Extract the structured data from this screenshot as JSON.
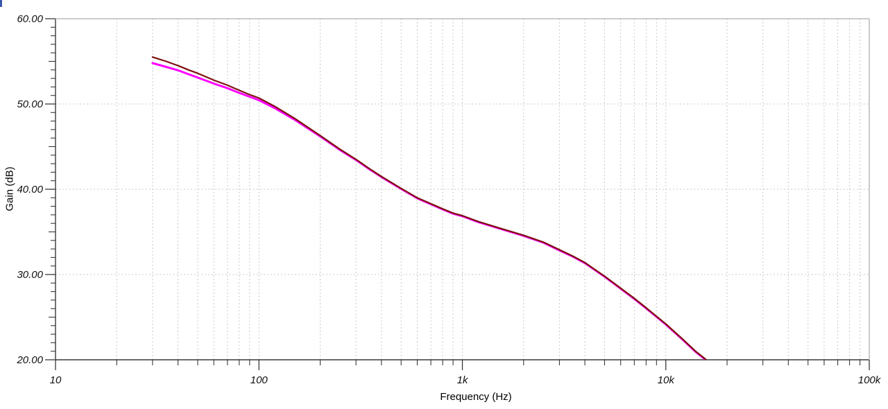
{
  "window": {
    "corner_artifact_color": "#3a57a8"
  },
  "colors": {
    "axis_dark": "#383838",
    "border_light": "#bcbcbc",
    "grid": "#c9c9c9",
    "tick_text": "#111111"
  },
  "chart_data": {
    "type": "line",
    "title": "",
    "xlabel": "Frequency (Hz)",
    "ylabel": "Gain (dB)",
    "x_scale": "log",
    "xlim": [
      10,
      100000
    ],
    "ylim": [
      20,
      60
    ],
    "grid": {
      "horizontal": "dashed at 30/40/50 dB",
      "vertical": "dashed at log minor and decade positions",
      "style": "dashed"
    },
    "legend_position": "none",
    "x_ticks": [
      {
        "value": 10,
        "label": "10"
      },
      {
        "value": 100,
        "label": "100"
      },
      {
        "value": 1000,
        "label": "1k"
      },
      {
        "value": 10000,
        "label": "10k"
      },
      {
        "value": 100000,
        "label": "100k"
      }
    ],
    "y_ticks": [
      {
        "value": 60,
        "label": "60.00"
      },
      {
        "value": 50,
        "label": "50.00"
      },
      {
        "value": 40,
        "label": "40.00"
      },
      {
        "value": 30,
        "label": "30.00"
      },
      {
        "value": 20,
        "label": "20.00"
      }
    ],
    "y_minor_step": 1,
    "series": [
      {
        "name": "gain-trace-magenta",
        "color": "#ff00ff",
        "width": 3,
        "points": [
          [
            30,
            54.8
          ],
          [
            35,
            54.35
          ],
          [
            40,
            53.95
          ],
          [
            45,
            53.5
          ],
          [
            50,
            53.1
          ],
          [
            60,
            52.4
          ],
          [
            70,
            51.85
          ],
          [
            80,
            51.3
          ],
          [
            90,
            50.85
          ],
          [
            100,
            50.45
          ],
          [
            120,
            49.5
          ],
          [
            150,
            48.15
          ],
          [
            200,
            46.2
          ],
          [
            250,
            44.62
          ],
          [
            300,
            43.43
          ],
          [
            350,
            42.34
          ],
          [
            400,
            41.44
          ],
          [
            500,
            40.04
          ],
          [
            600,
            38.94
          ],
          [
            700,
            38.24
          ],
          [
            800,
            37.64
          ],
          [
            900,
            37.14
          ],
          [
            1000,
            36.84
          ],
          [
            1200,
            36.14
          ],
          [
            1500,
            35.44
          ],
          [
            2000,
            34.54
          ],
          [
            2500,
            33.74
          ],
          [
            3000,
            32.84
          ],
          [
            3500,
            32.09
          ],
          [
            4000,
            31.34
          ],
          [
            5000,
            29.74
          ],
          [
            6000,
            28.34
          ],
          [
            7000,
            27.14
          ],
          [
            8000,
            26.04
          ],
          [
            9000,
            25.04
          ],
          [
            10000,
            24.14
          ],
          [
            12000,
            22.44
          ],
          [
            14000,
            20.94
          ],
          [
            15700,
            20.0
          ]
        ]
      },
      {
        "name": "gain-trace-dark-red",
        "color": "#7f1010",
        "width": 2.2,
        "points": [
          [
            30,
            55.5
          ],
          [
            35,
            55.0
          ],
          [
            40,
            54.5
          ],
          [
            45,
            54.0
          ],
          [
            50,
            53.6
          ],
          [
            60,
            52.8
          ],
          [
            70,
            52.2
          ],
          [
            80,
            51.6
          ],
          [
            90,
            51.1
          ],
          [
            100,
            50.7
          ],
          [
            120,
            49.7
          ],
          [
            150,
            48.3
          ],
          [
            200,
            46.3
          ],
          [
            250,
            44.7
          ],
          [
            300,
            43.5
          ],
          [
            350,
            42.4
          ],
          [
            400,
            41.5
          ],
          [
            500,
            40.1
          ],
          [
            600,
            39.0
          ],
          [
            700,
            38.3
          ],
          [
            800,
            37.7
          ],
          [
            900,
            37.2
          ],
          [
            1000,
            36.9
          ],
          [
            1200,
            36.2
          ],
          [
            1500,
            35.5
          ],
          [
            2000,
            34.6
          ],
          [
            2500,
            33.8
          ],
          [
            3000,
            32.9
          ],
          [
            3500,
            32.15
          ],
          [
            4000,
            31.4
          ],
          [
            5000,
            29.8
          ],
          [
            6000,
            28.4
          ],
          [
            7000,
            27.2
          ],
          [
            8000,
            26.1
          ],
          [
            9000,
            25.1
          ],
          [
            10000,
            24.2
          ],
          [
            12000,
            22.5
          ],
          [
            14000,
            21.0
          ],
          [
            15800,
            20.0
          ]
        ]
      }
    ]
  }
}
